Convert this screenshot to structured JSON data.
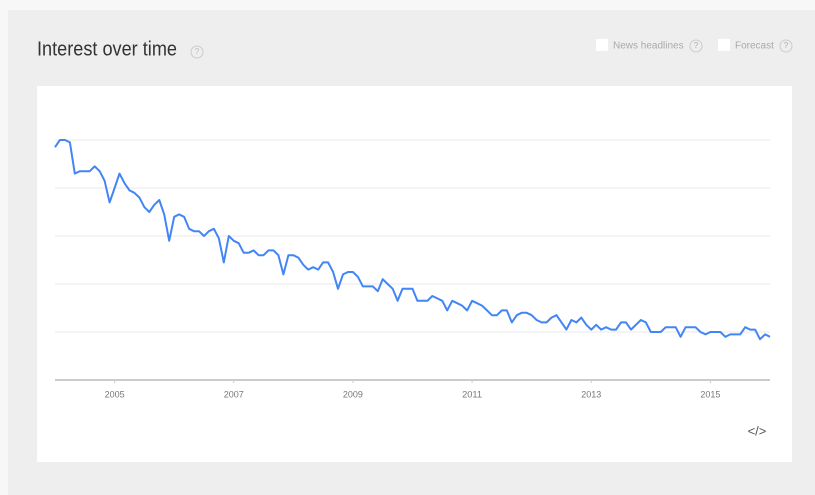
{
  "chart_data": {
    "type": "line",
    "title": "Interest over time",
    "help": "?",
    "options": [
      {
        "label": "News headlines",
        "help": "?"
      },
      {
        "label": "Forecast",
        "help": "?"
      }
    ],
    "embed": "</>",
    "color": "#4285f4",
    "x": [
      2004,
      2004.083,
      2004.167,
      2004.25,
      2004.333,
      2004.417,
      2004.5,
      2004.583,
      2004.667,
      2004.75,
      2004.833,
      2004.917,
      2005,
      2005.083,
      2005.167,
      2005.25,
      2005.333,
      2005.417,
      2005.5,
      2005.583,
      2005.667,
      2005.75,
      2005.833,
      2005.917,
      2006,
      2006.083,
      2006.167,
      2006.25,
      2006.333,
      2006.417,
      2006.5,
      2006.583,
      2006.667,
      2006.75,
      2006.833,
      2006.917,
      2007,
      2007.083,
      2007.167,
      2007.25,
      2007.333,
      2007.417,
      2007.5,
      2007.583,
      2007.667,
      2007.75,
      2007.833,
      2007.917,
      2008,
      2008.083,
      2008.167,
      2008.25,
      2008.333,
      2008.417,
      2008.5,
      2008.583,
      2008.667,
      2008.75,
      2008.833,
      2008.917,
      2009,
      2009.083,
      2009.167,
      2009.25,
      2009.333,
      2009.417,
      2009.5,
      2009.583,
      2009.667,
      2009.75,
      2009.833,
      2009.917,
      2010,
      2010.083,
      2010.167,
      2010.25,
      2010.333,
      2010.417,
      2010.5,
      2010.583,
      2010.667,
      2010.75,
      2010.833,
      2010.917,
      2011,
      2011.083,
      2011.167,
      2011.25,
      2011.333,
      2011.417,
      2011.5,
      2011.583,
      2011.667,
      2011.75,
      2011.833,
      2011.917,
      2012,
      2012.083,
      2012.167,
      2012.25,
      2012.333,
      2012.417,
      2012.5,
      2012.583,
      2012.667,
      2012.75,
      2012.833,
      2012.917,
      2013,
      2013.083,
      2013.167,
      2013.25,
      2013.333,
      2013.417,
      2013.5,
      2013.583,
      2013.667,
      2013.75,
      2013.833,
      2013.917,
      2014,
      2014.083,
      2014.167,
      2014.25,
      2014.333,
      2014.417,
      2014.5,
      2014.583,
      2014.667,
      2014.75,
      2014.833,
      2014.917,
      2015,
      2015.083,
      2015.167,
      2015.25,
      2015.333,
      2015.417,
      2015.5,
      2015.583,
      2015.667,
      2015.75,
      2015.833,
      2015.917,
      2016
    ],
    "values": [
      97,
      100,
      100,
      99,
      86,
      87,
      87,
      87,
      89,
      87,
      83,
      74,
      80,
      86,
      82,
      79,
      78,
      76,
      72,
      70,
      73,
      75,
      69,
      58,
      68,
      69,
      68,
      63,
      62,
      62,
      60,
      62,
      63,
      59,
      49,
      60,
      58,
      57,
      53,
      53,
      54,
      52,
      52,
      54,
      54,
      52,
      44,
      52,
      52,
      51,
      48,
      46,
      47,
      46,
      49,
      49,
      45,
      38,
      44,
      45,
      45,
      43,
      39,
      39,
      39,
      37,
      42,
      40,
      38,
      33,
      38,
      38,
      38,
      33,
      33,
      33,
      35,
      34,
      33,
      29,
      33,
      32,
      31,
      29,
      33,
      32,
      31,
      29,
      27,
      27,
      29,
      29,
      24,
      27,
      28,
      28,
      27,
      25,
      24,
      24,
      26,
      27,
      24,
      21,
      25,
      24,
      26,
      23,
      21,
      23,
      21,
      22,
      21,
      21,
      24,
      24,
      21,
      23,
      25,
      24,
      20,
      20,
      20,
      22,
      22,
      22,
      18,
      22,
      22,
      22,
      20,
      19,
      20,
      20,
      20,
      18,
      19,
      19,
      19,
      22,
      21,
      21,
      17,
      19,
      18
    ],
    "xlim": [
      2004,
      2016
    ],
    "xticks": [
      2005,
      2007,
      2009,
      2011,
      2013,
      2015
    ],
    "ylim": [
      0,
      100
    ],
    "yticks": [
      0,
      20,
      40,
      60,
      80,
      100
    ],
    "show_ytick_labels": false,
    "grid": true
  }
}
